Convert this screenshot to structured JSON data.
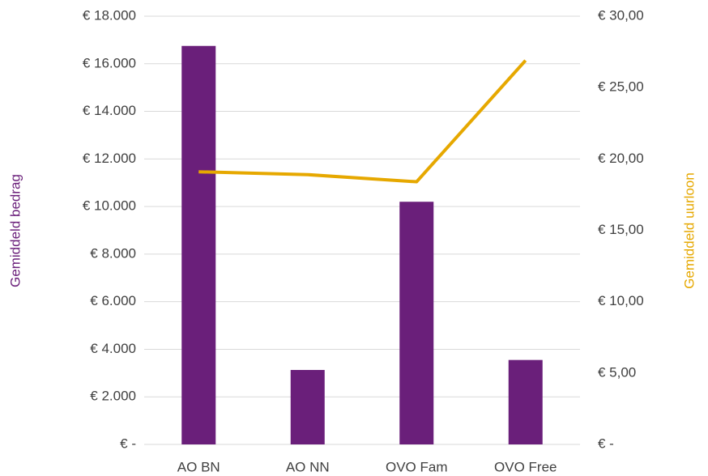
{
  "chart_data": {
    "type": "bar-line",
    "categories": [
      "AO BN",
      "AO NN",
      "OVO Fam",
      "OVO Free"
    ],
    "series": [
      {
        "type": "bar",
        "color": "#6a1f7a",
        "values": [
          16750,
          3130,
          10200,
          3550
        ]
      },
      {
        "type": "line",
        "axis": "y2",
        "color": "#e6a800",
        "values": [
          19.1,
          18.9,
          18.4,
          26.9
        ]
      }
    ],
    "ylabel": "Gemiddeld bedrag",
    "ylabel_color": "#6a1f7a",
    "y2label": "Gemiddeld uurloon",
    "y2label_color": "#e6a800",
    "ylim": [
      0,
      18000
    ],
    "yticks": [
      {
        "value": 0,
        "label": "€ -"
      },
      {
        "value": 2000,
        "label": "€ 2.000"
      },
      {
        "value": 4000,
        "label": "€ 4.000"
      },
      {
        "value": 6000,
        "label": "€ 6.000"
      },
      {
        "value": 8000,
        "label": "€ 8.000"
      },
      {
        "value": 10000,
        "label": "€ 10.000"
      },
      {
        "value": 12000,
        "label": "€ 12.000"
      },
      {
        "value": 14000,
        "label": "€ 14.000"
      },
      {
        "value": 16000,
        "label": "€ 16.000"
      },
      {
        "value": 18000,
        "label": "€ 18.000"
      }
    ],
    "y2lim": [
      0,
      30
    ],
    "y2ticks": [
      {
        "value": 0,
        "label": "€ -"
      },
      {
        "value": 5,
        "label": "€ 5,00"
      },
      {
        "value": 10,
        "label": "€ 10,00"
      },
      {
        "value": 15,
        "label": "€ 15,00"
      },
      {
        "value": 20,
        "label": "€ 20,00"
      },
      {
        "value": 25,
        "label": "€ 25,00"
      },
      {
        "value": 30,
        "label": "€ 30,00"
      }
    ],
    "grid": true
  }
}
